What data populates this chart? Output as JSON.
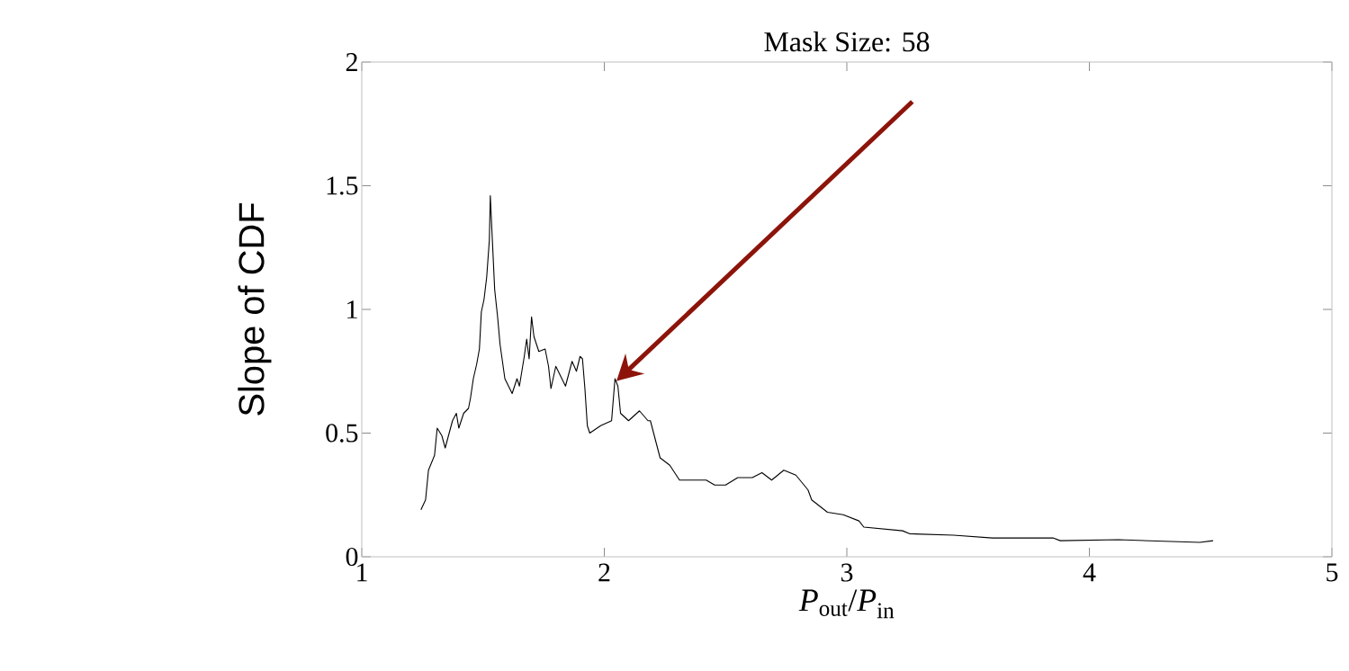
{
  "chart_data": {
    "type": "line",
    "title": "Mask Size: 58",
    "xlabel": "*P*$_{out}$/*P*$_{in}$",
    "ylabel": "Slope of CDF",
    "xlim": [
      1,
      5
    ],
    "ylim": [
      0,
      2
    ],
    "xticks": [
      1,
      2,
      3,
      4,
      5
    ],
    "yticks": [
      0,
      0.5,
      1,
      1.5,
      2
    ],
    "series": [
      {
        "color": "#000000",
        "x": [
          1.244,
          1.263,
          1.275,
          1.3,
          1.311,
          1.33,
          1.344,
          1.374,
          1.39,
          1.4,
          1.42,
          1.44,
          1.448,
          1.46,
          1.474,
          1.485,
          1.493,
          1.504,
          1.515,
          1.526,
          1.53,
          1.537,
          1.548,
          1.56,
          1.57,
          1.59,
          1.62,
          1.64,
          1.65,
          1.67,
          1.68,
          1.69,
          1.7,
          1.71,
          1.73,
          1.756,
          1.77,
          1.78,
          1.8,
          1.84,
          1.867,
          1.885,
          1.9,
          1.91,
          1.92,
          1.93,
          1.94,
          1.985,
          2.03,
          2.044,
          2.056,
          2.067,
          2.1,
          2.145,
          2.18,
          2.19,
          2.23,
          2.27,
          2.31,
          2.37,
          2.42,
          2.455,
          2.5,
          2.55,
          2.61,
          2.65,
          2.69,
          2.74,
          2.79,
          2.84,
          2.855,
          2.92,
          2.985,
          3.05,
          3.07,
          3.23,
          3.26,
          3.44,
          3.6,
          3.85,
          3.88,
          4.12,
          4.455,
          4.51
        ],
        "values": [
          0.19,
          0.23,
          0.35,
          0.41,
          0.52,
          0.49,
          0.44,
          0.55,
          0.58,
          0.52,
          0.58,
          0.6,
          0.64,
          0.72,
          0.78,
          0.84,
          0.99,
          1.04,
          1.13,
          1.28,
          1.46,
          1.31,
          1.08,
          0.97,
          0.86,
          0.72,
          0.66,
          0.72,
          0.69,
          0.81,
          0.88,
          0.8,
          0.97,
          0.89,
          0.83,
          0.84,
          0.77,
          0.68,
          0.77,
          0.69,
          0.79,
          0.75,
          0.81,
          0.8,
          0.68,
          0.53,
          0.5,
          0.53,
          0.55,
          0.72,
          0.69,
          0.58,
          0.55,
          0.59,
          0.55,
          0.55,
          0.4,
          0.37,
          0.31,
          0.31,
          0.31,
          0.29,
          0.29,
          0.32,
          0.32,
          0.34,
          0.31,
          0.35,
          0.33,
          0.27,
          0.23,
          0.18,
          0.17,
          0.145,
          0.12,
          0.105,
          0.093,
          0.087,
          0.076,
          0.076,
          0.065,
          0.069,
          0.058,
          0.065
        ]
      }
    ]
  }
}
